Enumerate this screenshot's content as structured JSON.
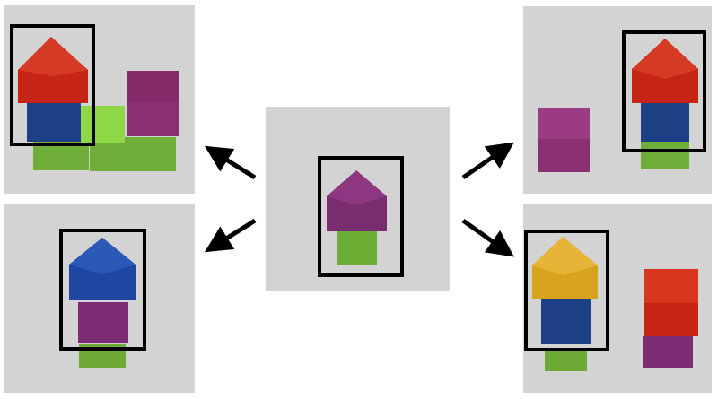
{
  "figure": {
    "center_panel": {
      "blocks": [
        {
          "name": "green-cube",
          "color": "#6cae35"
        },
        {
          "name": "purple-roof",
          "color": "#7a2d6e"
        }
      ]
    },
    "panels": [
      {
        "name": "panel-top-left",
        "blocks": [
          {
            "name": "green-base-left",
            "color": "#6fae38"
          },
          {
            "name": "green-base-right",
            "color": "#6fae38"
          },
          {
            "name": "green-cube-bright",
            "color": "#8ed848"
          },
          {
            "name": "blue-cube",
            "color": "#1d3f86"
          },
          {
            "name": "red-roof",
            "color": "#c62414"
          },
          {
            "name": "purple-cube",
            "color": "#8a2f70"
          }
        ]
      },
      {
        "name": "panel-bottom-left",
        "blocks": [
          {
            "name": "green-cube",
            "color": "#6caa35"
          },
          {
            "name": "purple-cube",
            "color": "#7c2c72"
          },
          {
            "name": "blue-roof",
            "color": "#1f46a0"
          }
        ]
      },
      {
        "name": "panel-top-right",
        "blocks": [
          {
            "name": "purple-cube",
            "color": "#8a2f70"
          },
          {
            "name": "green-cube",
            "color": "#6fae38"
          },
          {
            "name": "blue-cube",
            "color": "#1d3f86"
          },
          {
            "name": "red-roof",
            "color": "#c62414"
          }
        ]
      },
      {
        "name": "panel-bottom-right",
        "blocks": [
          {
            "name": "green-cube",
            "color": "#6caa35"
          },
          {
            "name": "blue-cube",
            "color": "#1d3f86"
          },
          {
            "name": "yellow-roof",
            "color": "#d9a21d"
          },
          {
            "name": "purple-cube",
            "color": "#7c2c72"
          },
          {
            "name": "red-cube",
            "color": "#c62414"
          }
        ]
      }
    ],
    "colors": {
      "panel_bg": "#d3d3d3",
      "frame": "#000000",
      "arrow": "#000000"
    }
  }
}
